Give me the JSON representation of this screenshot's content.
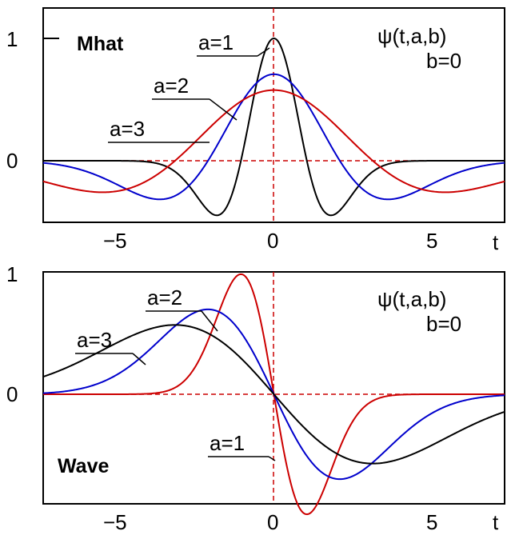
{
  "chart_data": [
    {
      "type": "line",
      "name": "Mhat",
      "formula_line1": "ψ(t,a,b)",
      "formula_line2": "b=0",
      "xlabel": "t",
      "xlim": [
        -7,
        7
      ],
      "ylim": [
        -0.5,
        1.15
      ],
      "x_ticks": [
        "−5",
        "0",
        "5"
      ],
      "y_ticks": [
        "1",
        "0"
      ],
      "colors": {
        "a1": "#000000",
        "a2": "#0000cc",
        "a3": "#cc0000",
        "axes": "#cc0000"
      },
      "series": [
        {
          "name": "a=1",
          "scale": 1,
          "color": "#000000"
        },
        {
          "name": "a=2",
          "scale": 2,
          "color": "#0000cc"
        },
        {
          "name": "a=3",
          "scale": 3,
          "color": "#cc0000"
        }
      ],
      "grid": false,
      "legend": "callout labels"
    },
    {
      "type": "line",
      "name": "Wave",
      "formula_line1": "ψ(t,a,b)",
      "formula_line2": "b=0",
      "xlabel": "t",
      "xlim": [
        -7,
        7
      ],
      "ylim": [
        -0.85,
        1.0
      ],
      "x_ticks": [
        "−5",
        "0",
        "5"
      ],
      "y_ticks": [
        "1",
        "0"
      ],
      "series": [
        {
          "name": "a=1",
          "scale": 1,
          "color": "#cc0000"
        },
        {
          "name": "a=2",
          "scale": 2,
          "color": "#0000cc"
        },
        {
          "name": "a=3",
          "scale": 3,
          "color": "#000000"
        }
      ],
      "grid": false,
      "legend": "callout labels"
    }
  ]
}
